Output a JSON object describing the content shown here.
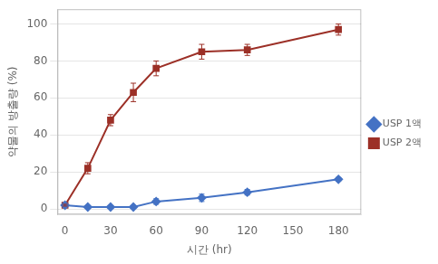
{
  "chart_data": {
    "type": "line",
    "xlabel": "시간 (hr)",
    "ylabel": "약물의 방출량 (%)",
    "x": [
      0,
      15,
      30,
      45,
      60,
      90,
      120,
      180
    ],
    "series": [
      {
        "name": "USP 1액",
        "color": "#4472C4",
        "marker": "diamond",
        "values": [
          2,
          1,
          1,
          1,
          4,
          6,
          9,
          16
        ],
        "errors": [
          0.5,
          0.5,
          0.5,
          0.5,
          1.5,
          2.0,
          1.5,
          1.0
        ]
      },
      {
        "name": "USP 2액",
        "color": "#9C3027",
        "marker": "square",
        "values": [
          2,
          22,
          48,
          63,
          76,
          85,
          86,
          97
        ],
        "errors": [
          0.5,
          3,
          3,
          5,
          4,
          4,
          3,
          3
        ]
      }
    ],
    "xlim": [
      -5,
      195
    ],
    "xticks": [
      0,
      30,
      60,
      90,
      120,
      150,
      180
    ],
    "ylim": [
      -3,
      108
    ],
    "yticks": [
      0,
      20,
      40,
      60,
      80,
      100
    ],
    "grid": "y",
    "legend": "right"
  }
}
